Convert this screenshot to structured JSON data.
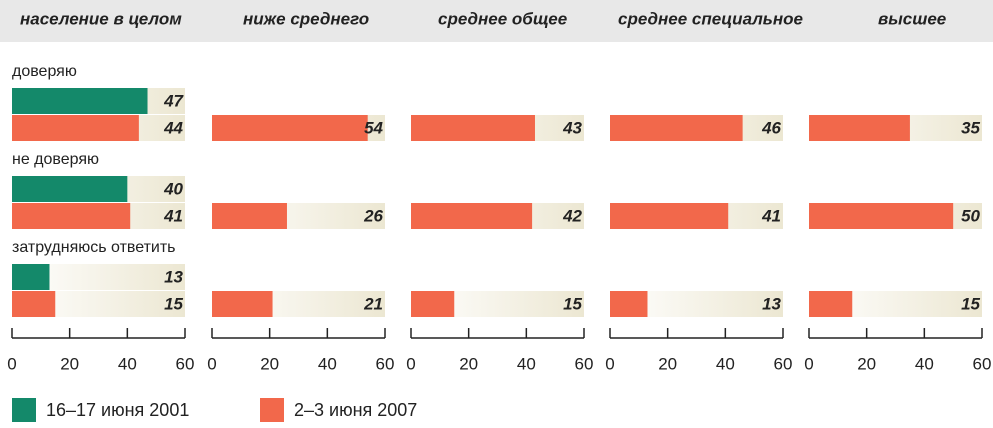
{
  "chart_data": [
    {
      "type": "hbar",
      "title": "население в целом",
      "categories": [
        "доверяю",
        "не доверяю",
        "затрудняюсь ответить"
      ],
      "series": [
        {
          "name": "16–17 июня 2001",
          "color": "#14896a",
          "values": [
            47,
            40,
            13
          ]
        },
        {
          "name": "2–3 июня 2007",
          "color": "#f2684b",
          "values": [
            44,
            41,
            15
          ]
        }
      ],
      "xlim": [
        0,
        60
      ],
      "xticks": [
        0,
        20,
        40,
        60
      ]
    },
    {
      "type": "hbar",
      "title": "ниже среднего",
      "color": "#f2684b",
      "values": [
        54,
        26,
        21
      ],
      "xlim": [
        0,
        60
      ],
      "xticks": [
        0,
        20,
        40,
        60
      ]
    },
    {
      "type": "hbar",
      "title": "среднее общее",
      "color": "#f2684b",
      "values": [
        43,
        42,
        15
      ],
      "xlim": [
        0,
        60
      ],
      "xticks": [
        0,
        20,
        40,
        60
      ]
    },
    {
      "type": "hbar",
      "title": "среднее специальное",
      "color": "#f2684b",
      "values": [
        46,
        41,
        13
      ],
      "xlim": [
        0,
        60
      ],
      "xticks": [
        0,
        20,
        40,
        60
      ]
    },
    {
      "type": "hbar",
      "title": "высшее",
      "color": "#f2684b",
      "values": [
        35,
        50,
        15
      ],
      "xlim": [
        0,
        60
      ],
      "xticks": [
        0,
        20,
        40,
        60
      ]
    }
  ]
}
